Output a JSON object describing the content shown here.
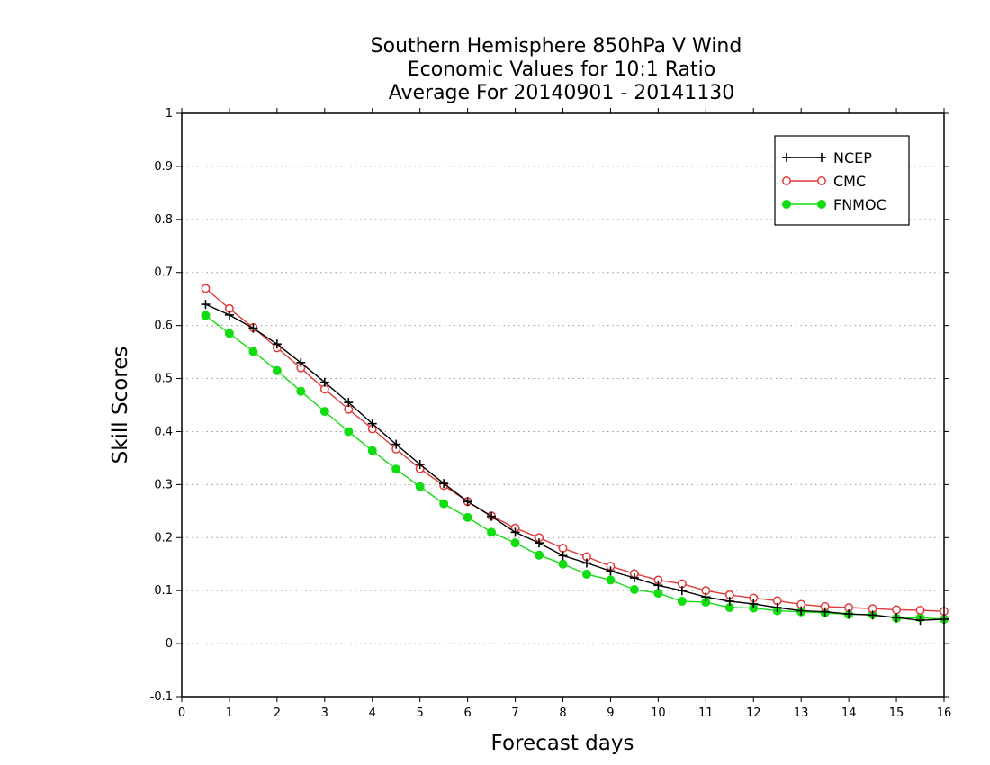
{
  "chart_data": {
    "type": "line",
    "title": [
      "Southern Hemisphere 850hPa V Wind",
      "Economic Values for 10:1 Ratio",
      "Average For 20140901 - 20141130"
    ],
    "xlabel": "Forecast days",
    "ylabel": "Skill Scores",
    "xlim": [
      0,
      16
    ],
    "ylim": [
      -0.1,
      1
    ],
    "xticks": [
      0,
      1,
      2,
      3,
      4,
      5,
      6,
      7,
      8,
      9,
      10,
      11,
      12,
      13,
      14,
      15,
      16
    ],
    "yticks": [
      -0.1,
      0,
      0.1,
      0.2,
      0.3,
      0.4,
      0.5,
      0.6,
      0.7,
      0.8,
      0.9,
      1
    ],
    "ytick_labels": [
      "-0.1",
      "0",
      "0.1",
      "0.2",
      "0.3",
      "0.4",
      "0.5",
      "0.6",
      "0.7",
      "0.8",
      "0.9",
      "1"
    ],
    "grid": "dotted horizontal",
    "legend_position": "top-right",
    "x": [
      0.5,
      1,
      1.5,
      2,
      2.5,
      3,
      3.5,
      4,
      4.5,
      5,
      5.5,
      6,
      6.5,
      7,
      7.5,
      8,
      8.5,
      9,
      9.5,
      10,
      10.5,
      11,
      11.5,
      12,
      12.5,
      13,
      13.5,
      14,
      14.5,
      15,
      15.5,
      16
    ],
    "series": [
      {
        "name": "NCEP",
        "color": "#000000",
        "marker": "plus",
        "values": [
          0.64,
          0.62,
          0.595,
          0.565,
          0.53,
          0.493,
          0.455,
          0.415,
          0.376,
          0.338,
          0.302,
          0.268,
          0.24,
          0.21,
          0.19,
          0.166,
          0.152,
          0.137,
          0.124,
          0.11,
          0.1,
          0.088,
          0.08,
          0.075,
          0.068,
          0.062,
          0.06,
          0.056,
          0.054,
          0.049,
          0.044,
          0.046
        ]
      },
      {
        "name": "CMC",
        "color": "#e03a3a",
        "marker": "open-circle",
        "values": [
          0.67,
          0.632,
          0.596,
          0.558,
          0.52,
          0.48,
          0.442,
          0.405,
          0.367,
          0.33,
          0.298,
          0.268,
          0.241,
          0.218,
          0.2,
          0.18,
          0.164,
          0.146,
          0.132,
          0.12,
          0.113,
          0.1,
          0.092,
          0.086,
          0.081,
          0.074,
          0.07,
          0.068,
          0.066,
          0.064,
          0.063,
          0.061
        ]
      },
      {
        "name": "FNMOC",
        "color": "#11dd11",
        "marker": "filled-circle",
        "values": [
          0.619,
          0.585,
          0.551,
          0.515,
          0.476,
          0.438,
          0.4,
          0.364,
          0.329,
          0.296,
          0.264,
          0.238,
          0.21,
          0.19,
          0.167,
          0.15,
          0.131,
          0.12,
          0.102,
          0.095,
          0.08,
          0.078,
          0.068,
          0.067,
          0.062,
          0.06,
          0.058,
          0.055,
          0.055,
          0.048,
          0.049,
          0.046
        ]
      }
    ]
  }
}
